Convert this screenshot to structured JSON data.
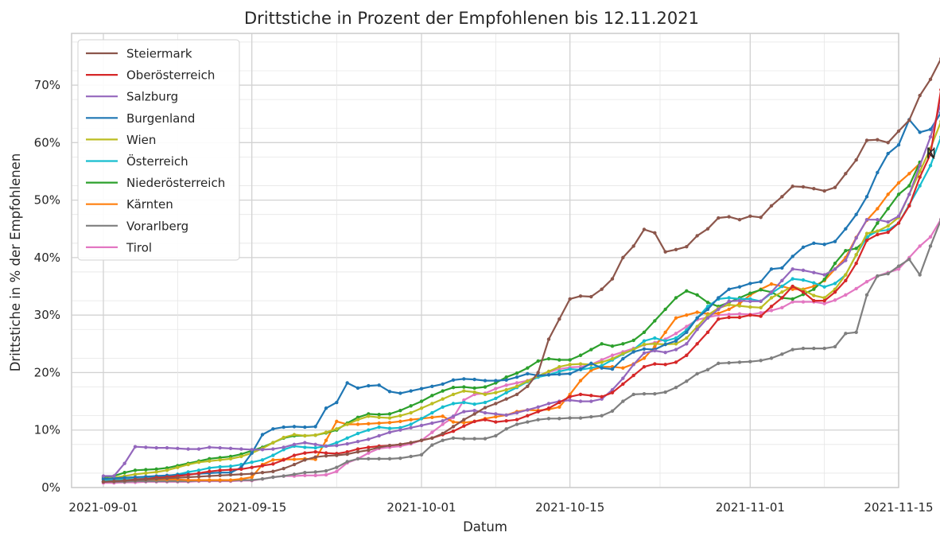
{
  "chart_data": {
    "type": "line",
    "title": "Drittstiche in Prozent der Empfohlenen bis 12.11.2021",
    "xlabel": "Datum",
    "ylabel": "Drittstiche in % der Empfohlenen",
    "x_start": "2021-09-01",
    "xlim": [
      "2021-08-29",
      "2021-11-15"
    ],
    "ylim": [
      0,
      79
    ],
    "x_ticks": [
      "2021-09-01",
      "2021-09-15",
      "2021-10-01",
      "2021-10-15",
      "2021-11-01",
      "2021-11-15"
    ],
    "y_ticks": [
      0,
      10,
      20,
      30,
      40,
      50,
      60,
      70
    ],
    "y_tick_labels": [
      "0%",
      "10%",
      "20%",
      "30%",
      "40%",
      "50%",
      "60%",
      "70%"
    ],
    "grid": true,
    "legend_position": "top-left",
    "series": [
      {
        "name": "Steiermark",
        "label": "St",
        "color": "#8c564b",
        "values": [
          1.0,
          1.1,
          1.2,
          1.3,
          1.4,
          1.5,
          1.6,
          1.7,
          1.8,
          1.9,
          2.0,
          2.1,
          2.2,
          2.3,
          2.4,
          2.6,
          2.8,
          3.3,
          4.0,
          4.8,
          5.3,
          5.5,
          5.6,
          5.8,
          6.2,
          6.5,
          7.0,
          7.3,
          7.5,
          7.8,
          8.2,
          8.6,
          9.4,
          10.6,
          11.8,
          12.8,
          13.9,
          14.6,
          15.4,
          16.2,
          17.6,
          20.0,
          25.8,
          29.3,
          32.8,
          33.3,
          33.2,
          34.5,
          36.3,
          40.0,
          42.0,
          44.9,
          44.3,
          41.0,
          41.4,
          41.9,
          43.8,
          45.0,
          46.9,
          47.1,
          46.6,
          47.2,
          47.0,
          49.0,
          50.6,
          52.4,
          52.3,
          52.0,
          51.6,
          52.2,
          54.6,
          57.0,
          60.4,
          60.5,
          60.0,
          62.0,
          63.9,
          68.2,
          71.0,
          74.6
        ]
      },
      {
        "name": "Oberösterreich",
        "label": "O",
        "color": "#d62728",
        "values": [
          1.0,
          1.1,
          1.2,
          1.4,
          1.5,
          1.7,
          1.8,
          2.0,
          2.2,
          2.5,
          2.8,
          3.0,
          3.1,
          3.2,
          3.5,
          3.8,
          4.1,
          4.8,
          5.6,
          6.0,
          6.2,
          6.0,
          5.9,
          6.2,
          6.7,
          7.0,
          7.2,
          7.3,
          7.5,
          7.8,
          8.2,
          8.6,
          9.2,
          9.8,
          10.7,
          11.5,
          11.8,
          11.4,
          11.6,
          11.8,
          12.5,
          13.2,
          13.8,
          14.8,
          15.8,
          16.2,
          16.0,
          15.8,
          16.5,
          18.0,
          19.5,
          21.0,
          21.5,
          21.4,
          21.8,
          23.0,
          25.0,
          27.0,
          29.3,
          29.6,
          29.6,
          30.0,
          29.8,
          31.5,
          33.0,
          35.0,
          34.0,
          32.5,
          32.5,
          34.0,
          36.0,
          39.0,
          43.0,
          44.0,
          44.4,
          46.0,
          49.0,
          54.0,
          58.0,
          69.2
        ]
      },
      {
        "name": "Salzburg",
        "label": "Sa",
        "color": "#9467bd",
        "values": [
          2.0,
          2.0,
          4.2,
          7.1,
          7.0,
          6.9,
          6.9,
          6.8,
          6.7,
          6.7,
          7.0,
          6.9,
          6.8,
          6.7,
          6.6,
          6.6,
          6.7,
          7.0,
          7.5,
          7.8,
          7.5,
          7.2,
          7.3,
          7.6,
          8.0,
          8.4,
          9.0,
          9.6,
          10.0,
          10.4,
          10.8,
          11.2,
          11.6,
          12.4,
          13.2,
          13.4,
          13.0,
          12.8,
          12.6,
          13.0,
          13.5,
          14.0,
          14.6,
          15.0,
          15.2,
          15.0,
          15.0,
          15.4,
          17.0,
          19.0,
          21.4,
          23.4,
          23.8,
          23.5,
          24.0,
          25.0,
          27.5,
          29.5,
          31.0,
          32.4,
          32.5,
          32.4,
          32.4,
          34.0,
          36.0,
          38.0,
          37.8,
          37.4,
          37.0,
          38.0,
          39.5,
          43.4,
          46.6,
          46.6,
          46.2,
          47.2,
          51.0,
          56.0,
          61.0,
          66.9
        ]
      },
      {
        "name": "Burgenland",
        "label": "B",
        "color": "#1f77b4",
        "values": [
          1.5,
          1.6,
          1.7,
          1.8,
          1.9,
          2.0,
          2.1,
          2.2,
          2.3,
          2.4,
          2.5,
          2.6,
          2.6,
          3.5,
          6.0,
          9.2,
          10.2,
          10.5,
          10.6,
          10.5,
          10.6,
          13.8,
          14.8,
          18.2,
          17.3,
          17.7,
          17.8,
          16.7,
          16.4,
          16.8,
          17.2,
          17.6,
          18.0,
          18.7,
          18.9,
          18.8,
          18.6,
          18.6,
          18.7,
          19.2,
          19.8,
          19.5,
          19.6,
          19.7,
          19.8,
          20.6,
          21.6,
          20.8,
          20.6,
          22.4,
          23.6,
          24.1,
          24.0,
          24.9,
          25.5,
          27.0,
          29.5,
          31.0,
          33.0,
          34.5,
          34.9,
          35.5,
          35.8,
          38.0,
          38.2,
          40.2,
          41.8,
          42.5,
          42.3,
          42.8,
          45.0,
          47.5,
          50.6,
          54.8,
          58.1,
          59.6,
          64.0,
          61.8,
          62.3,
          65.2
        ]
      },
      {
        "name": "Wien",
        "label": "W",
        "color": "#bcbd22",
        "values": [
          1.5,
          1.7,
          2.0,
          2.3,
          2.5,
          2.7,
          3.0,
          3.5,
          4.0,
          4.4,
          4.6,
          4.8,
          5.0,
          5.4,
          6.0,
          6.8,
          7.8,
          8.7,
          9.2,
          9.0,
          9.1,
          9.6,
          10.2,
          11.0,
          11.8,
          12.4,
          12.2,
          12.1,
          12.5,
          13.0,
          13.8,
          14.6,
          15.4,
          16.2,
          16.8,
          16.6,
          16.2,
          16.5,
          17.0,
          17.6,
          18.5,
          19.4,
          20.2,
          21.0,
          21.4,
          21.5,
          21.4,
          21.8,
          22.4,
          23.3,
          24.0,
          24.9,
          25.0,
          24.9,
          25.0,
          26.0,
          28.0,
          30.0,
          31.2,
          31.8,
          31.6,
          31.4,
          31.3,
          33.0,
          34.0,
          35.0,
          34.4,
          33.4,
          33.0,
          34.5,
          37.0,
          40.5,
          44.2,
          44.6,
          45.5,
          47.0,
          51.0,
          55.0,
          59.0,
          63.7
        ]
      },
      {
        "name": "Österreich",
        "label": "A",
        "color": "#17becf",
        "values": [
          1.2,
          1.3,
          1.4,
          1.5,
          1.6,
          1.8,
          2.0,
          2.3,
          2.7,
          3.0,
          3.4,
          3.6,
          3.7,
          4.0,
          4.4,
          4.8,
          5.6,
          6.6,
          7.2,
          7.0,
          6.9,
          7.2,
          7.8,
          8.6,
          9.4,
          10.0,
          10.5,
          10.3,
          10.4,
          11.0,
          12.0,
          13.0,
          14.0,
          14.6,
          14.8,
          14.5,
          14.8,
          15.5,
          16.5,
          17.4,
          18.4,
          19.2,
          19.6,
          20.2,
          20.6,
          20.5,
          20.8,
          21.2,
          22.2,
          23.2,
          24.0,
          25.5,
          26.0,
          25.5,
          26.0,
          27.4,
          29.5,
          31.5,
          32.8,
          33.0,
          32.8,
          32.8,
          32.4,
          33.8,
          35.0,
          36.3,
          36.1,
          35.6,
          34.9,
          35.5,
          37.0,
          40.5,
          43.6,
          44.6,
          44.8,
          46.0,
          49.2,
          52.5,
          56.0,
          61.0
        ]
      },
      {
        "name": "Niederösterreich",
        "label": "N",
        "color": "#2ca02c",
        "values": [
          1.8,
          2.0,
          2.6,
          3.0,
          3.1,
          3.2,
          3.4,
          3.8,
          4.2,
          4.6,
          5.0,
          5.2,
          5.4,
          5.8,
          6.4,
          7.0,
          7.8,
          8.6,
          9.0,
          9.0,
          9.1,
          9.5,
          10.0,
          11.2,
          12.2,
          12.8,
          12.7,
          12.8,
          13.4,
          14.2,
          15.0,
          16.0,
          16.8,
          17.4,
          17.5,
          17.3,
          17.5,
          18.2,
          19.2,
          19.9,
          20.8,
          22.0,
          22.4,
          22.2,
          22.2,
          23.0,
          24.0,
          25.0,
          24.6,
          25.0,
          25.6,
          27.0,
          29.0,
          31.0,
          33.0,
          34.2,
          33.5,
          32.2,
          31.5,
          32.2,
          33.0,
          33.8,
          34.4,
          34.0,
          33.0,
          32.8,
          33.6,
          34.5,
          36.2,
          39.0,
          41.2,
          41.6,
          43.2,
          46.0,
          48.5,
          51.0,
          52.5,
          56.6
        ]
      },
      {
        "name": "Kärnten",
        "label": "K",
        "color": "#ff7f0e",
        "values": [
          1.5,
          1.4,
          1.4,
          1.4,
          1.4,
          1.4,
          1.4,
          1.4,
          1.3,
          1.3,
          1.3,
          1.3,
          1.3,
          1.5,
          1.8,
          4.0,
          4.8,
          4.9,
          4.9,
          5.0,
          4.9,
          8.2,
          11.5,
          11.0,
          11.0,
          11.1,
          11.2,
          11.3,
          11.5,
          11.8,
          12.0,
          12.2,
          12.4,
          11.4,
          11.3,
          11.5,
          12.0,
          12.3,
          12.6,
          13.2,
          13.5,
          13.4,
          13.6,
          14.0,
          16.2,
          18.6,
          20.4,
          21.0,
          21.0,
          20.8,
          21.5,
          22.5,
          24.5,
          27.0,
          29.5,
          30.0,
          30.5,
          30.2,
          30.3,
          31.0,
          32.0,
          33.5,
          34.5,
          35.4,
          35.0,
          34.5,
          34.5,
          35.0,
          36.0,
          38.0,
          40.0,
          43.5,
          46.5,
          48.5,
          51.0,
          53.0,
          54.6,
          56.4
        ]
      },
      {
        "name": "Vorarlberg",
        "label": "V",
        "color": "#7f7f7f",
        "values": [
          1.0,
          1.0,
          1.0,
          1.1,
          1.1,
          1.1,
          1.1,
          1.1,
          1.1,
          1.2,
          1.2,
          1.2,
          1.2,
          1.3,
          1.3,
          1.5,
          1.8,
          2.0,
          2.3,
          2.6,
          2.7,
          2.9,
          3.5,
          4.5,
          5.0,
          5.0,
          5.0,
          5.0,
          5.1,
          5.4,
          5.7,
          7.4,
          8.2,
          8.6,
          8.5,
          8.5,
          8.5,
          9.0,
          10.2,
          11.0,
          11.4,
          11.8,
          12.0,
          12.0,
          12.1,
          12.1,
          12.3,
          12.5,
          13.3,
          15.0,
          16.2,
          16.3,
          16.3,
          16.6,
          17.4,
          18.5,
          19.8,
          20.5,
          21.6,
          21.7,
          21.8,
          21.9,
          22.1,
          22.5,
          23.2,
          24.0,
          24.2,
          24.2,
          24.2,
          24.5,
          26.8,
          27.0,
          33.5,
          36.8,
          37.2,
          38.5,
          39.7,
          37.0,
          42.0,
          46.6
        ]
      },
      {
        "name": "Tirol",
        "label": "T",
        "color": "#e377c2",
        "values": [
          0.8,
          0.8,
          0.9,
          0.9,
          1.0,
          1.0,
          1.0,
          1.0,
          1.0,
          1.1,
          1.1,
          1.1,
          1.1,
          1.2,
          1.2,
          1.5,
          1.8,
          2.0,
          2.0,
          2.1,
          2.1,
          2.2,
          2.8,
          4.3,
          5.0,
          6.0,
          6.8,
          7.0,
          7.2,
          7.6,
          8.2,
          9.6,
          11.0,
          12.2,
          15.2,
          16.2,
          16.4,
          17.2,
          17.8,
          18.2,
          18.6,
          19.4,
          20.1,
          20.6,
          20.9,
          21.0,
          21.4,
          22.2,
          23.0,
          23.6,
          24.2,
          24.8,
          25.2,
          25.8,
          26.8,
          28.0,
          29.2,
          29.6,
          30.0,
          30.1,
          30.2,
          30.1,
          30.4,
          30.8,
          31.3,
          32.3,
          32.3,
          32.3,
          32.0,
          32.6,
          33.5,
          34.6,
          35.8,
          36.8,
          37.4,
          38.0,
          40.0,
          42.0,
          43.6,
          46.7
        ]
      }
    ]
  }
}
